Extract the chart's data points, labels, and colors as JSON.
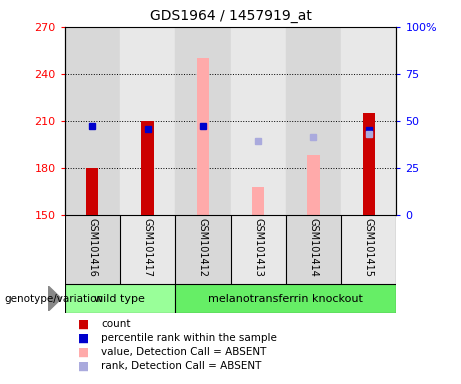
{
  "title": "GDS1964 / 1457919_at",
  "samples": [
    "GSM101416",
    "GSM101417",
    "GSM101412",
    "GSM101413",
    "GSM101414",
    "GSM101415"
  ],
  "ylim_left": [
    150,
    270
  ],
  "ylim_right": [
    0,
    100
  ],
  "yticks_left": [
    150,
    180,
    210,
    240,
    270
  ],
  "yticks_right": [
    0,
    25,
    50,
    75,
    100
  ],
  "ytick_labels_right": [
    "0",
    "25",
    "50",
    "75",
    "100%"
  ],
  "red_bar_values": [
    180,
    210,
    null,
    null,
    null,
    215
  ],
  "blue_dot_values": [
    207,
    205,
    207,
    null,
    null,
    204
  ],
  "pink_bar_values": [
    null,
    null,
    250,
    168,
    188,
    null
  ],
  "lightblue_dot_values": [
    null,
    null,
    null,
    197,
    200,
    202
  ],
  "wild_type_label": "wild type",
  "knockout_label": "melanotransferrin knockout",
  "genotype_label": "genotype/variation",
  "legend_items": [
    {
      "label": "count",
      "color": "#cc0000"
    },
    {
      "label": "percentile rank within the sample",
      "color": "#0000cc"
    },
    {
      "label": "value, Detection Call = ABSENT",
      "color": "#ffaaaa"
    },
    {
      "label": "rank, Detection Call = ABSENT",
      "color": "#aaaadd"
    }
  ],
  "background_color": "#ffffff",
  "red_color": "#cc0000",
  "blue_color": "#0000cc",
  "pink_color": "#ffaaaa",
  "lightblue_color": "#aaaadd",
  "label_bg_wt": "#99ff99",
  "label_bg_ko": "#66ee66",
  "col_bg_even": "#d8d8d8",
  "col_bg_odd": "#e8e8e8"
}
